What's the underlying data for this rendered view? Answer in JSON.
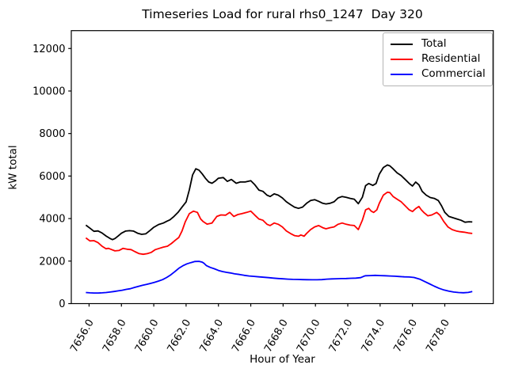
{
  "chart_data": {
    "type": "line",
    "title": "Timeseries Load for rural rhs0_1247  Day 320",
    "xlabel": "Hour of Year",
    "ylabel": "kW total",
    "xlim": [
      7654.9,
      7681.0
    ],
    "ylim": [
      0,
      12840
    ],
    "xticks": [
      7656,
      7658,
      7660,
      7662,
      7664,
      7666,
      7668,
      7670,
      7672,
      7674,
      7676,
      7678
    ],
    "yticks": [
      0,
      2000,
      4000,
      6000,
      8000,
      10000,
      12000
    ],
    "grid": false,
    "legend_position": "upper right",
    "series": [
      {
        "name": "Total",
        "color": "#000000",
        "points": [
          [
            7655.8,
            3690
          ],
          [
            7656.05,
            3550
          ],
          [
            7656.3,
            3400
          ],
          [
            7656.55,
            3420
          ],
          [
            7656.8,
            3320
          ],
          [
            7657.05,
            3180
          ],
          [
            7657.3,
            3060
          ],
          [
            7657.45,
            3010
          ],
          [
            7657.6,
            3060
          ],
          [
            7657.8,
            3180
          ],
          [
            7658.0,
            3310
          ],
          [
            7658.25,
            3410
          ],
          [
            7658.5,
            3430
          ],
          [
            7658.75,
            3410
          ],
          [
            7659.0,
            3310
          ],
          [
            7659.25,
            3260
          ],
          [
            7659.5,
            3280
          ],
          [
            7659.75,
            3430
          ],
          [
            7660.0,
            3590
          ],
          [
            7660.3,
            3720
          ],
          [
            7660.6,
            3790
          ],
          [
            7660.8,
            3870
          ],
          [
            7661.0,
            3940
          ],
          [
            7661.25,
            4100
          ],
          [
            7661.5,
            4290
          ],
          [
            7661.75,
            4540
          ],
          [
            7662.0,
            4780
          ],
          [
            7662.2,
            5350
          ],
          [
            7662.4,
            6050
          ],
          [
            7662.6,
            6340
          ],
          [
            7662.8,
            6280
          ],
          [
            7663.0,
            6100
          ],
          [
            7663.2,
            5890
          ],
          [
            7663.4,
            5720
          ],
          [
            7663.6,
            5660
          ],
          [
            7663.8,
            5760
          ],
          [
            7664.0,
            5900
          ],
          [
            7664.3,
            5930
          ],
          [
            7664.55,
            5750
          ],
          [
            7664.8,
            5840
          ],
          [
            7665.1,
            5660
          ],
          [
            7665.35,
            5720
          ],
          [
            7665.65,
            5720
          ],
          [
            7666.0,
            5780
          ],
          [
            7666.25,
            5590
          ],
          [
            7666.5,
            5340
          ],
          [
            7666.75,
            5280
          ],
          [
            7667.0,
            5100
          ],
          [
            7667.2,
            5040
          ],
          [
            7667.45,
            5160
          ],
          [
            7667.7,
            5100
          ],
          [
            7667.95,
            4970
          ],
          [
            7668.2,
            4790
          ],
          [
            7668.45,
            4660
          ],
          [
            7668.7,
            4540
          ],
          [
            7668.95,
            4480
          ],
          [
            7669.2,
            4540
          ],
          [
            7669.45,
            4720
          ],
          [
            7669.7,
            4850
          ],
          [
            7669.95,
            4890
          ],
          [
            7670.2,
            4810
          ],
          [
            7670.45,
            4720
          ],
          [
            7670.65,
            4690
          ],
          [
            7670.9,
            4720
          ],
          [
            7671.15,
            4790
          ],
          [
            7671.4,
            4970
          ],
          [
            7671.65,
            5040
          ],
          [
            7671.9,
            5000
          ],
          [
            7672.15,
            4950
          ],
          [
            7672.4,
            4910
          ],
          [
            7672.65,
            4700
          ],
          [
            7672.9,
            5000
          ],
          [
            7673.1,
            5550
          ],
          [
            7673.3,
            5650
          ],
          [
            7673.55,
            5560
          ],
          [
            7673.75,
            5650
          ],
          [
            7673.95,
            6090
          ],
          [
            7674.2,
            6400
          ],
          [
            7674.45,
            6520
          ],
          [
            7674.6,
            6480
          ],
          [
            7674.8,
            6340
          ],
          [
            7675.05,
            6150
          ],
          [
            7675.3,
            6020
          ],
          [
            7675.55,
            5840
          ],
          [
            7675.8,
            5650
          ],
          [
            7676.0,
            5530
          ],
          [
            7676.2,
            5720
          ],
          [
            7676.4,
            5590
          ],
          [
            7676.6,
            5280
          ],
          [
            7676.85,
            5100
          ],
          [
            7677.1,
            4990
          ],
          [
            7677.35,
            4950
          ],
          [
            7677.6,
            4850
          ],
          [
            7677.8,
            4600
          ],
          [
            7678.0,
            4290
          ],
          [
            7678.25,
            4100
          ],
          [
            7678.5,
            4040
          ],
          [
            7678.75,
            3980
          ],
          [
            7679.0,
            3920
          ],
          [
            7679.25,
            3830
          ],
          [
            7679.5,
            3850
          ],
          [
            7679.7,
            3840
          ]
        ]
      },
      {
        "name": "Residential",
        "color": "#ff0000",
        "points": [
          [
            7655.8,
            3090
          ],
          [
            7656.05,
            2950
          ],
          [
            7656.3,
            2960
          ],
          [
            7656.55,
            2870
          ],
          [
            7656.8,
            2700
          ],
          [
            7657.05,
            2580
          ],
          [
            7657.2,
            2600
          ],
          [
            7657.4,
            2540
          ],
          [
            7657.6,
            2480
          ],
          [
            7657.85,
            2500
          ],
          [
            7658.1,
            2600
          ],
          [
            7658.35,
            2560
          ],
          [
            7658.6,
            2540
          ],
          [
            7658.85,
            2440
          ],
          [
            7659.1,
            2350
          ],
          [
            7659.35,
            2320
          ],
          [
            7659.6,
            2350
          ],
          [
            7659.85,
            2410
          ],
          [
            7660.1,
            2540
          ],
          [
            7660.35,
            2600
          ],
          [
            7660.6,
            2660
          ],
          [
            7660.85,
            2700
          ],
          [
            7661.1,
            2830
          ],
          [
            7661.35,
            2990
          ],
          [
            7661.55,
            3110
          ],
          [
            7661.75,
            3420
          ],
          [
            7661.95,
            3850
          ],
          [
            7662.2,
            4230
          ],
          [
            7662.45,
            4350
          ],
          [
            7662.7,
            4290
          ],
          [
            7662.9,
            3980
          ],
          [
            7663.05,
            3860
          ],
          [
            7663.3,
            3740
          ],
          [
            7663.6,
            3790
          ],
          [
            7663.9,
            4100
          ],
          [
            7664.15,
            4170
          ],
          [
            7664.45,
            4160
          ],
          [
            7664.7,
            4290
          ],
          [
            7664.95,
            4100
          ],
          [
            7665.2,
            4190
          ],
          [
            7665.45,
            4230
          ],
          [
            7665.75,
            4290
          ],
          [
            7666.0,
            4350
          ],
          [
            7666.25,
            4160
          ],
          [
            7666.5,
            3980
          ],
          [
            7666.75,
            3920
          ],
          [
            7667.0,
            3730
          ],
          [
            7667.2,
            3670
          ],
          [
            7667.45,
            3790
          ],
          [
            7667.7,
            3730
          ],
          [
            7667.95,
            3610
          ],
          [
            7668.2,
            3420
          ],
          [
            7668.45,
            3300
          ],
          [
            7668.7,
            3200
          ],
          [
            7668.95,
            3170
          ],
          [
            7669.1,
            3230
          ],
          [
            7669.3,
            3170
          ],
          [
            7669.45,
            3300
          ],
          [
            7669.7,
            3480
          ],
          [
            7669.95,
            3610
          ],
          [
            7670.2,
            3670
          ],
          [
            7670.45,
            3570
          ],
          [
            7670.65,
            3520
          ],
          [
            7670.9,
            3570
          ],
          [
            7671.15,
            3610
          ],
          [
            7671.4,
            3730
          ],
          [
            7671.65,
            3790
          ],
          [
            7671.9,
            3730
          ],
          [
            7672.15,
            3690
          ],
          [
            7672.4,
            3670
          ],
          [
            7672.65,
            3480
          ],
          [
            7672.9,
            3920
          ],
          [
            7673.1,
            4410
          ],
          [
            7673.3,
            4480
          ],
          [
            7673.45,
            4350
          ],
          [
            7673.6,
            4290
          ],
          [
            7673.8,
            4410
          ],
          [
            7673.95,
            4720
          ],
          [
            7674.2,
            5100
          ],
          [
            7674.45,
            5240
          ],
          [
            7674.6,
            5220
          ],
          [
            7674.8,
            5040
          ],
          [
            7675.05,
            4910
          ],
          [
            7675.3,
            4790
          ],
          [
            7675.55,
            4600
          ],
          [
            7675.8,
            4410
          ],
          [
            7676.0,
            4330
          ],
          [
            7676.2,
            4470
          ],
          [
            7676.4,
            4570
          ],
          [
            7676.55,
            4410
          ],
          [
            7676.7,
            4290
          ],
          [
            7676.95,
            4130
          ],
          [
            7677.2,
            4170
          ],
          [
            7677.5,
            4290
          ],
          [
            7677.7,
            4160
          ],
          [
            7677.95,
            3850
          ],
          [
            7678.2,
            3600
          ],
          [
            7678.45,
            3480
          ],
          [
            7678.7,
            3420
          ],
          [
            7678.95,
            3380
          ],
          [
            7679.2,
            3360
          ],
          [
            7679.45,
            3320
          ],
          [
            7679.7,
            3300
          ]
        ]
      },
      {
        "name": "Commercial",
        "color": "#0000ff",
        "points": [
          [
            7655.8,
            520
          ],
          [
            7656.05,
            505
          ],
          [
            7656.3,
            500
          ],
          [
            7656.55,
            500
          ],
          [
            7656.8,
            505
          ],
          [
            7657.05,
            520
          ],
          [
            7657.3,
            545
          ],
          [
            7657.55,
            570
          ],
          [
            7657.8,
            600
          ],
          [
            7658.05,
            630
          ],
          [
            7658.3,
            670
          ],
          [
            7658.55,
            700
          ],
          [
            7658.8,
            760
          ],
          [
            7659.05,
            810
          ],
          [
            7659.3,
            860
          ],
          [
            7659.55,
            900
          ],
          [
            7659.8,
            950
          ],
          [
            7660.05,
            1000
          ],
          [
            7660.3,
            1060
          ],
          [
            7660.55,
            1130
          ],
          [
            7660.8,
            1230
          ],
          [
            7661.05,
            1350
          ],
          [
            7661.3,
            1500
          ],
          [
            7661.55,
            1660
          ],
          [
            7661.8,
            1780
          ],
          [
            7662.05,
            1870
          ],
          [
            7662.3,
            1930
          ],
          [
            7662.55,
            1980
          ],
          [
            7662.8,
            1990
          ],
          [
            7663.0,
            1950
          ],
          [
            7663.1,
            1900
          ],
          [
            7663.25,
            1790
          ],
          [
            7663.5,
            1700
          ],
          [
            7663.75,
            1640
          ],
          [
            7664.0,
            1560
          ],
          [
            7664.25,
            1510
          ],
          [
            7664.5,
            1470
          ],
          [
            7664.75,
            1440
          ],
          [
            7665.0,
            1400
          ],
          [
            7665.3,
            1370
          ],
          [
            7665.6,
            1330
          ],
          [
            7665.9,
            1300
          ],
          [
            7666.2,
            1280
          ],
          [
            7666.5,
            1260
          ],
          [
            7666.8,
            1240
          ],
          [
            7667.1,
            1220
          ],
          [
            7667.4,
            1200
          ],
          [
            7667.7,
            1180
          ],
          [
            7668.0,
            1165
          ],
          [
            7668.3,
            1150
          ],
          [
            7668.6,
            1140
          ],
          [
            7668.9,
            1135
          ],
          [
            7669.2,
            1130
          ],
          [
            7669.5,
            1125
          ],
          [
            7669.8,
            1120
          ],
          [
            7670.1,
            1120
          ],
          [
            7670.4,
            1130
          ],
          [
            7670.7,
            1150
          ],
          [
            7671.0,
            1160
          ],
          [
            7671.3,
            1170
          ],
          [
            7671.6,
            1175
          ],
          [
            7671.9,
            1180
          ],
          [
            7672.2,
            1190
          ],
          [
            7672.5,
            1200
          ],
          [
            7672.8,
            1220
          ],
          [
            7673.0,
            1290
          ],
          [
            7673.1,
            1310
          ],
          [
            7673.4,
            1320
          ],
          [
            7673.7,
            1330
          ],
          [
            7674.0,
            1320
          ],
          [
            7674.3,
            1310
          ],
          [
            7674.6,
            1300
          ],
          [
            7674.9,
            1290
          ],
          [
            7675.2,
            1275
          ],
          [
            7675.5,
            1260
          ],
          [
            7675.8,
            1250
          ],
          [
            7676.1,
            1230
          ],
          [
            7676.45,
            1150
          ],
          [
            7676.75,
            1040
          ],
          [
            7677.05,
            930
          ],
          [
            7677.35,
            820
          ],
          [
            7677.65,
            720
          ],
          [
            7677.95,
            640
          ],
          [
            7678.25,
            590
          ],
          [
            7678.55,
            545
          ],
          [
            7678.85,
            520
          ],
          [
            7679.15,
            510
          ],
          [
            7679.45,
            525
          ],
          [
            7679.7,
            570
          ]
        ]
      }
    ]
  }
}
